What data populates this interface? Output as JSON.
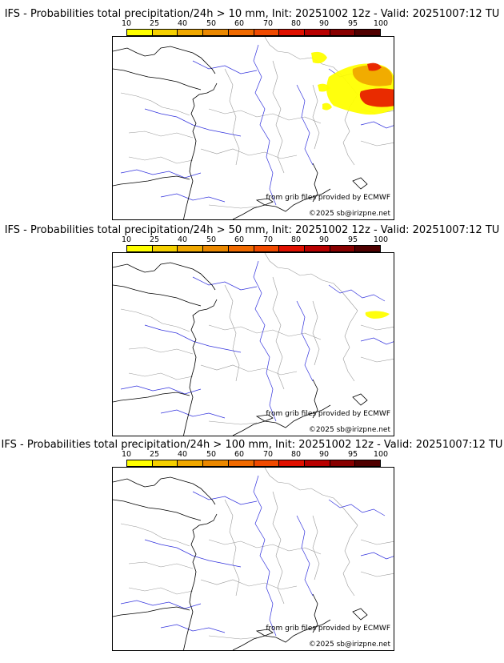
{
  "colors": {
    "scale": [
      "#ffff00",
      "#f5d000",
      "#f0a800",
      "#eb8800",
      "#f06a00",
      "#f04a00",
      "#e01000",
      "#b80000",
      "#880000",
      "#500000"
    ],
    "river": "#3333dd",
    "border": "#999999",
    "coast": "#000000",
    "prob_low": "#ffff00",
    "prob_mid": "#f0a800",
    "prob_high": "#e82000"
  },
  "colorbar": {
    "ticks": [
      "10",
      "25",
      "40",
      "50",
      "60",
      "70",
      "80",
      "90",
      "95",
      "100"
    ]
  },
  "panels": [
    {
      "title": "IFS - Probabilities total precipitation/24h > 10 mm, Init: 20251002 12z - Valid: 20251007:12 TU",
      "threshold_mm": 10,
      "credit_grib": "from grib files provided by ECMWF",
      "credit_copyright": "©2025 sb@irizpne.net"
    },
    {
      "title": "IFS - Probabilities total precipitation/24h > 50 mm, Init: 20251002 12z - Valid: 20251007:12 TU",
      "threshold_mm": 50,
      "credit_grib": "from grib files provided by ECMWF",
      "credit_copyright": "©2025 sb@irizpne.net"
    },
    {
      "title": "IFS - Probabilities total precipitation/24h > 100 mm, Init: 20251002 12z - Valid: 20251007:12 TU",
      "threshold_mm": 100,
      "credit_grib": "from grib files provided by ECMWF",
      "credit_copyright": "©2025 sb@irizpne.net"
    }
  ]
}
